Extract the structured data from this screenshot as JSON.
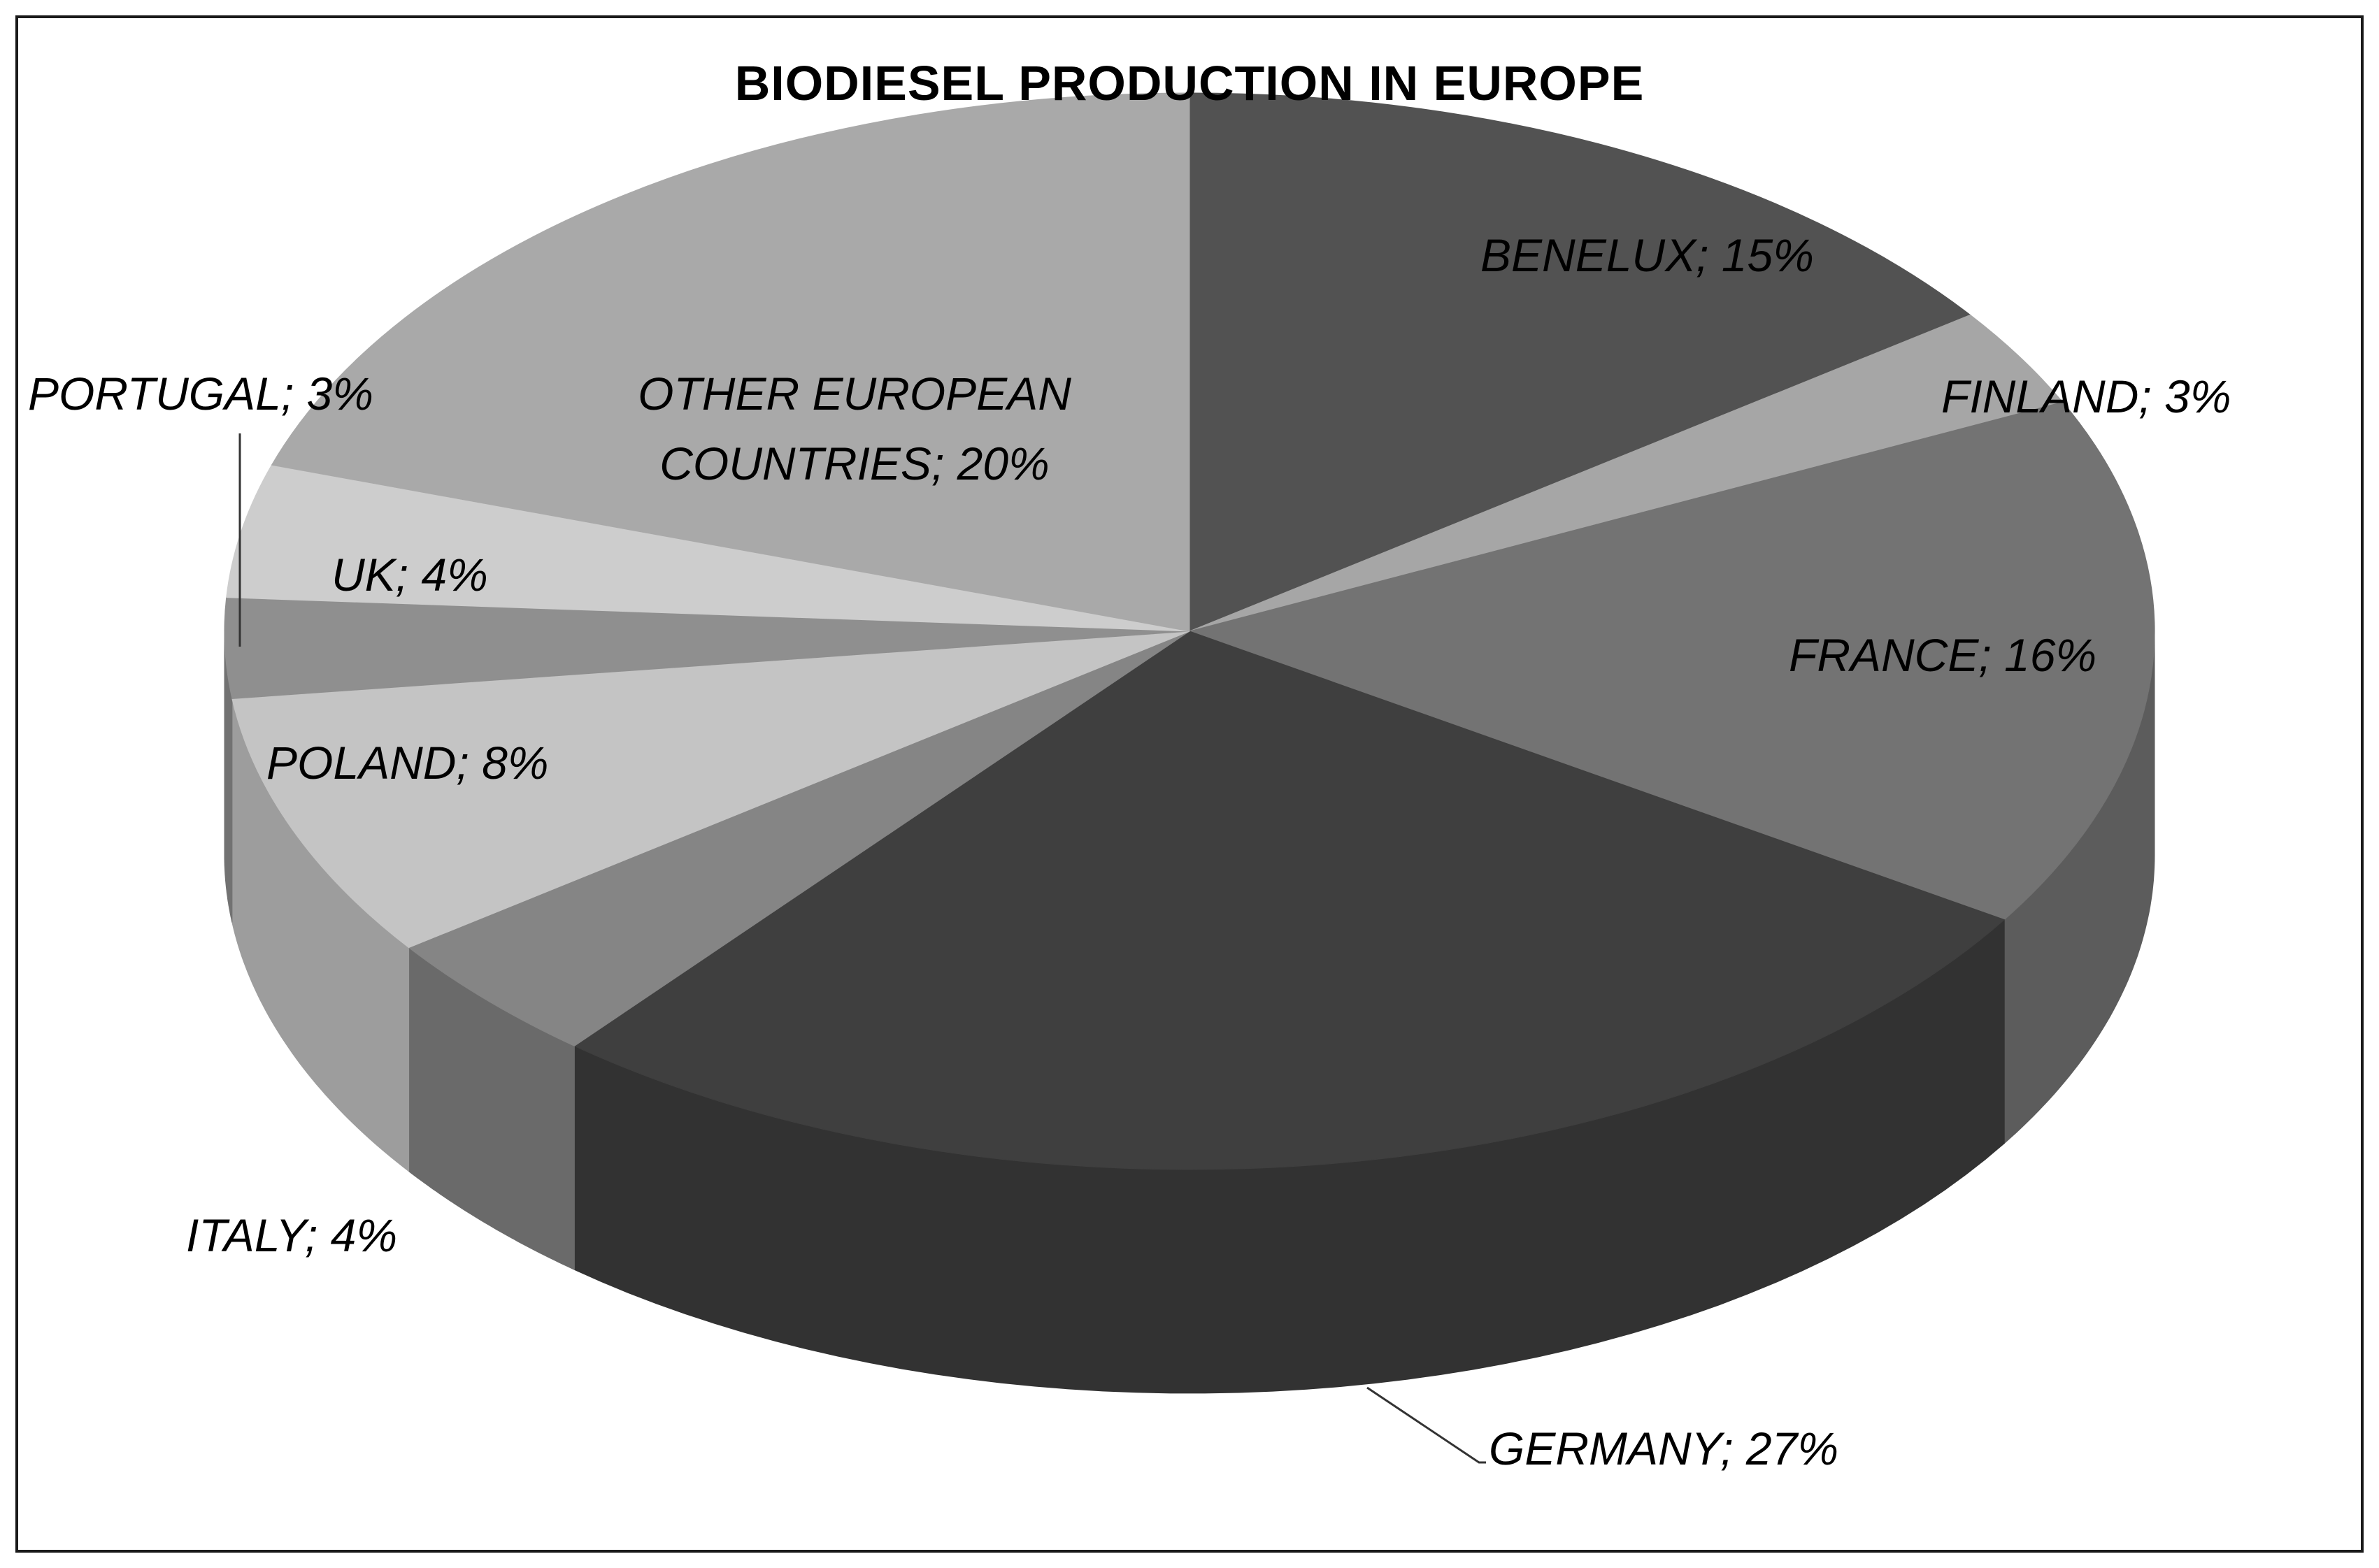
{
  "chart_data": {
    "type": "pie",
    "title": "BIODIESEL PRODUCTION  IN  EUROPE",
    "slices": [
      {
        "label": "BENELUX",
        "value": 15,
        "display": "BENELUX; 15%",
        "color": "#525252"
      },
      {
        "label": "FINLAND",
        "value": 3,
        "display": "FINLAND; 3%",
        "color": "#a6a6a6"
      },
      {
        "label": "FRANCE",
        "value": 16,
        "display": "FRANCE; 16%",
        "color": "#737373"
      },
      {
        "label": "GERMANY",
        "value": 27,
        "display": "GERMANY; 27%",
        "color": "#3f3f3f"
      },
      {
        "label": "ITALY",
        "value": 4,
        "display": "ITALY; 4%",
        "color": "#858585"
      },
      {
        "label": "POLAND",
        "value": 8,
        "display": "POLAND; 8%",
        "color": "#c4c4c4"
      },
      {
        "label": "PORTUGAL",
        "value": 3,
        "display": "PORTUGAL; 3%",
        "color": "#8f8f8f"
      },
      {
        "label": "UK",
        "value": 4,
        "display": "UK; 4%",
        "color": "#cdcdcd"
      },
      {
        "label": "OTHER EUROPEAN COUNTRIES",
        "value": 20,
        "display": [
          "OTHER EUROPEAN",
          "COUNTRIES; 20%"
        ],
        "color": "#a9a9a9"
      }
    ],
    "style": "3d",
    "legend": "none"
  }
}
